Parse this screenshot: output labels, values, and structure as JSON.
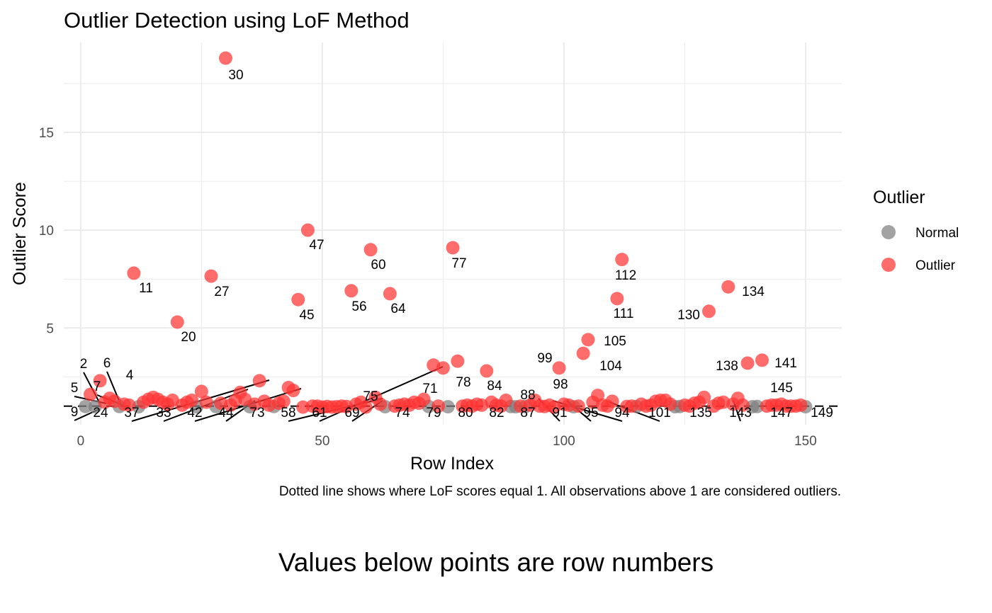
{
  "chart_data": {
    "type": "scatter",
    "title": "Outlier Detection using LoF Method",
    "xlabel": "Row Index",
    "ylabel": "Outlier Score",
    "caption": "Dotted line shows where LoF scores equal 1. All observations above 1 are considered outliers.",
    "xlim": [
      -3.5,
      157.5
    ],
    "ylim": [
      0.05,
      19.6
    ],
    "xticks": [
      0,
      50,
      100,
      150
    ],
    "yticks": [
      5,
      10,
      15
    ],
    "reference_line": {
      "y": 1,
      "style": "dashed"
    },
    "grid": true,
    "legend": {
      "title": "Outlier",
      "position": "right",
      "entries": [
        {
          "name": "Normal",
          "color": "#808080"
        },
        {
          "name": "Outlier",
          "color": "#ff3333"
        }
      ]
    },
    "series": [
      {
        "name": "Normal",
        "color": "#808080",
        "points": [
          {
            "x": 1,
            "y": 0.98
          },
          {
            "x": 3,
            "y": 0.97
          },
          {
            "x": 8,
            "y": 0.98
          },
          {
            "x": 12,
            "y": 0.97
          },
          {
            "x": 24,
            "y": 0.96
          },
          {
            "x": 28,
            "y": 0.98
          },
          {
            "x": 35,
            "y": 0.97
          },
          {
            "x": 40,
            "y": 0.98
          },
          {
            "x": 63,
            "y": 0.97
          },
          {
            "x": 72,
            "y": 0.98
          },
          {
            "x": 76,
            "y": 0.97
          },
          {
            "x": 89,
            "y": 0.98
          },
          {
            "x": 90,
            "y": 0.97
          },
          {
            "x": 92,
            "y": 0.98
          },
          {
            "x": 102,
            "y": 0.97
          },
          {
            "x": 115,
            "y": 0.98
          },
          {
            "x": 123,
            "y": 0.97
          },
          {
            "x": 124,
            "y": 0.98
          },
          {
            "x": 139,
            "y": 0.97
          },
          {
            "x": 140,
            "y": 0.98
          },
          {
            "x": 150,
            "y": 0.97
          }
        ]
      },
      {
        "name": "Outlier",
        "color": "#ff3333",
        "points": [
          {
            "x": 30,
            "y": 18.8
          },
          {
            "x": 47,
            "y": 10.0
          },
          {
            "x": 60,
            "y": 9.0
          },
          {
            "x": 77,
            "y": 9.1
          },
          {
            "x": 112,
            "y": 8.5
          },
          {
            "x": 11,
            "y": 7.8
          },
          {
            "x": 27,
            "y": 7.65
          },
          {
            "x": 134,
            "y": 7.1
          },
          {
            "x": 56,
            "y": 6.9
          },
          {
            "x": 64,
            "y": 6.75
          },
          {
            "x": 111,
            "y": 6.5
          },
          {
            "x": 45,
            "y": 6.45
          },
          {
            "x": 130,
            "y": 5.85
          },
          {
            "x": 20,
            "y": 5.3
          },
          {
            "x": 105,
            "y": 4.4
          },
          {
            "x": 104,
            "y": 3.7
          },
          {
            "x": 141,
            "y": 3.35
          },
          {
            "x": 78,
            "y": 3.3
          },
          {
            "x": 138,
            "y": 3.2
          },
          {
            "x": 73,
            "y": 3.1
          },
          {
            "x": 75,
            "y": 2.95
          },
          {
            "x": 99,
            "y": 2.95
          },
          {
            "x": 84,
            "y": 2.8
          },
          {
            "x": 4,
            "y": 2.3
          },
          {
            "x": 37,
            "y": 2.3
          },
          {
            "x": 43,
            "y": 1.95
          },
          {
            "x": 2,
            "y": 1.6
          },
          {
            "x": 6,
            "y": 1.4
          },
          {
            "x": 5,
            "y": 1.2
          },
          {
            "x": 7,
            "y": 1.25
          },
          {
            "x": 9,
            "y": 1.1
          },
          {
            "x": 10,
            "y": 1.05
          },
          {
            "x": 13,
            "y": 1.2
          },
          {
            "x": 14,
            "y": 1.35
          },
          {
            "x": 15,
            "y": 1.45
          },
          {
            "x": 16,
            "y": 1.35
          },
          {
            "x": 17,
            "y": 1.2
          },
          {
            "x": 18,
            "y": 1.1
          },
          {
            "x": 19,
            "y": 1.3
          },
          {
            "x": 21,
            "y": 1.05
          },
          {
            "x": 22,
            "y": 1.2
          },
          {
            "x": 23,
            "y": 1.3
          },
          {
            "x": 25,
            "y": 1.75
          },
          {
            "x": 26,
            "y": 1.2
          },
          {
            "x": 29,
            "y": 1.15
          },
          {
            "x": 31,
            "y": 1.05
          },
          {
            "x": 32,
            "y": 1.3
          },
          {
            "x": 33,
            "y": 1.7
          },
          {
            "x": 34,
            "y": 1.35
          },
          {
            "x": 36,
            "y": 1.1
          },
          {
            "x": 38,
            "y": 1.25
          },
          {
            "x": 39,
            "y": 1.05
          },
          {
            "x": 41,
            "y": 1.15
          },
          {
            "x": 42,
            "y": 1.25
          },
          {
            "x": 44,
            "y": 1.8
          },
          {
            "x": 46,
            "y": 0.95
          },
          {
            "x": 48,
            "y": 1.0
          },
          {
            "x": 49,
            "y": 1.0
          },
          {
            "x": 50,
            "y": 0.95
          },
          {
            "x": 51,
            "y": 0.98
          },
          {
            "x": 52,
            "y": 0.95
          },
          {
            "x": 53,
            "y": 0.97
          },
          {
            "x": 54,
            "y": 1.0
          },
          {
            "x": 55,
            "y": 0.98
          },
          {
            "x": 57,
            "y": 1.1
          },
          {
            "x": 58,
            "y": 1.2
          },
          {
            "x": 59,
            "y": 0.95
          },
          {
            "x": 61,
            "y": 1.45
          },
          {
            "x": 62,
            "y": 1.1
          },
          {
            "x": 65,
            "y": 1.0
          },
          {
            "x": 66,
            "y": 1.05
          },
          {
            "x": 67,
            "y": 1.1
          },
          {
            "x": 68,
            "y": 1.05
          },
          {
            "x": 69,
            "y": 1.2
          },
          {
            "x": 70,
            "y": 1.15
          },
          {
            "x": 71,
            "y": 1.35
          },
          {
            "x": 74,
            "y": 1.0
          },
          {
            "x": 79,
            "y": 1.0
          },
          {
            "x": 80,
            "y": 1.05
          },
          {
            "x": 81,
            "y": 1.0
          },
          {
            "x": 82,
            "y": 1.1
          },
          {
            "x": 83,
            "y": 1.05
          },
          {
            "x": 85,
            "y": 1.2
          },
          {
            "x": 86,
            "y": 1.05
          },
          {
            "x": 87,
            "y": 1.0
          },
          {
            "x": 88,
            "y": 1.3
          },
          {
            "x": 91,
            "y": 1.0
          },
          {
            "x": 93,
            "y": 1.05
          },
          {
            "x": 94,
            "y": 1.3
          },
          {
            "x": 95,
            "y": 1.0
          },
          {
            "x": 96,
            "y": 0.98
          },
          {
            "x": 97,
            "y": 1.05
          },
          {
            "x": 98,
            "y": 0.95
          },
          {
            "x": 100,
            "y": 1.1
          },
          {
            "x": 101,
            "y": 1.05
          },
          {
            "x": 103,
            "y": 1.0
          },
          {
            "x": 106,
            "y": 1.2
          },
          {
            "x": 107,
            "y": 1.55
          },
          {
            "x": 108,
            "y": 1.05
          },
          {
            "x": 109,
            "y": 1.0
          },
          {
            "x": 110,
            "y": 1.25
          },
          {
            "x": 113,
            "y": 0.98
          },
          {
            "x": 114,
            "y": 1.0
          },
          {
            "x": 116,
            "y": 1.1
          },
          {
            "x": 117,
            "y": 1.0
          },
          {
            "x": 118,
            "y": 1.05
          },
          {
            "x": 119,
            "y": 1.25
          },
          {
            "x": 120,
            "y": 1.3
          },
          {
            "x": 121,
            "y": 1.3
          },
          {
            "x": 122,
            "y": 1.1
          },
          {
            "x": 125,
            "y": 1.05
          },
          {
            "x": 126,
            "y": 1.0
          },
          {
            "x": 127,
            "y": 1.15
          },
          {
            "x": 128,
            "y": 1.2
          },
          {
            "x": 129,
            "y": 1.45
          },
          {
            "x": 131,
            "y": 1.0
          },
          {
            "x": 132,
            "y": 1.15
          },
          {
            "x": 133,
            "y": 1.2
          },
          {
            "x": 135,
            "y": 1.1
          },
          {
            "x": 136,
            "y": 1.4
          },
          {
            "x": 137,
            "y": 1.05
          },
          {
            "x": 142,
            "y": 1.0
          },
          {
            "x": 143,
            "y": 1.05
          },
          {
            "x": 144,
            "y": 1.05
          },
          {
            "x": 145,
            "y": 1.1
          },
          {
            "x": 146,
            "y": 1.0
          },
          {
            "x": 147,
            "y": 1.0
          },
          {
            "x": 148,
            "y": 1.0
          },
          {
            "x": 149,
            "y": 1.05
          }
        ]
      }
    ],
    "point_labels": [
      "30",
      "47",
      "60",
      "77",
      "112",
      "11",
      "27",
      "134",
      "56",
      "64",
      "111",
      "45",
      "130",
      "20",
      "105",
      "104",
      "141",
      "78",
      "138",
      "99",
      "98",
      "84",
      "2",
      "6",
      "4",
      "5",
      "7",
      "9",
      "24",
      "37",
      "33",
      "42",
      "44",
      "73",
      "58",
      "61",
      "69",
      "75",
      "74",
      "71",
      "79",
      "80",
      "82",
      "87",
      "88",
      "91",
      "95",
      "94",
      "101",
      "135",
      "143",
      "145",
      "147",
      "149"
    ]
  },
  "bottom_note": "Values below points are row numbers"
}
